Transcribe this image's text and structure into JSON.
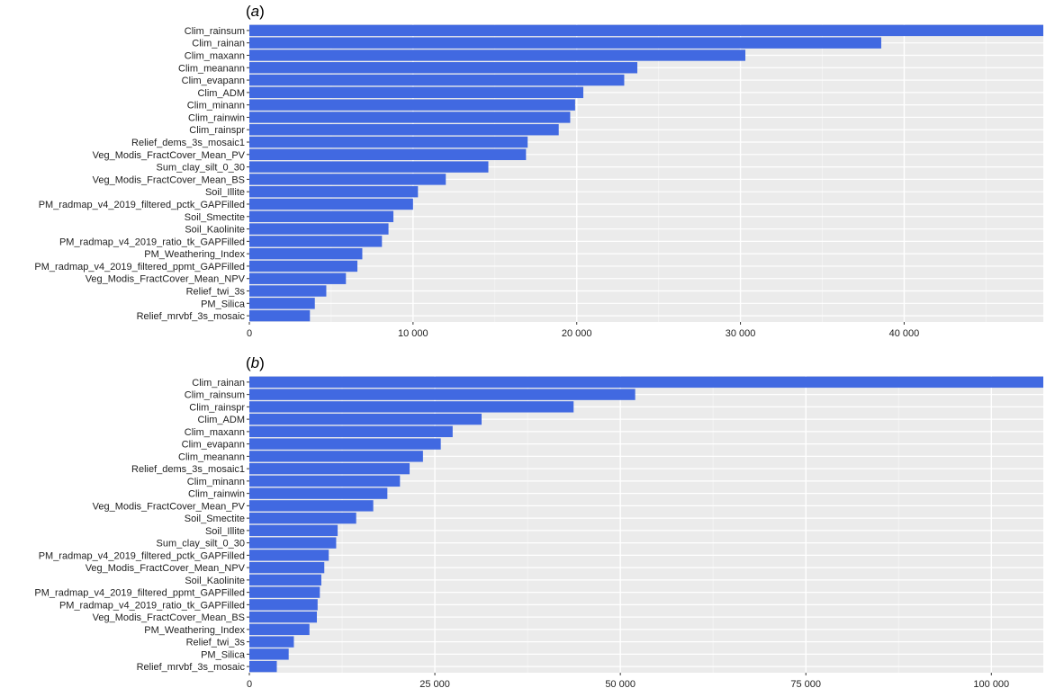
{
  "colors": {
    "bar": "#4169E1",
    "panel": "#EBEBEB",
    "grid_major": "#FFFFFF",
    "grid_minor": "#F5F5F5",
    "text": "#222222"
  },
  "chart_data": [
    {
      "type": "bar",
      "orientation": "horizontal",
      "panel_label": "a",
      "xlim": [
        0,
        48500
      ],
      "xticks": [
        0,
        10000,
        20000,
        30000,
        40000
      ],
      "xtick_labels": [
        "0",
        "10 000",
        "20 000",
        "30 000",
        "40 000"
      ],
      "grid": true,
      "categories": [
        "Clim_rainsum",
        "Clim_rainan",
        "Clim_maxann",
        "Clim_meanann",
        "Clim_evapann",
        "Clim_ADM",
        "Clim_minann",
        "Clim_rainwin",
        "Clim_rainspr",
        "Relief_dems_3s_mosaic1",
        "Veg_Modis_FractCover_Mean_PV",
        "Sum_clay_silt_0_30",
        "Veg_Modis_FractCover_Mean_BS",
        "Soil_Illite",
        "PM_radmap_v4_2019_filtered_pctk_GAPFilled",
        "Soil_Smectite",
        "Soil_Kaolinite",
        "PM_radmap_v4_2019_ratio_tk_GAPFilled",
        "PM_Weathering_Index",
        "PM_radmap_v4_2019_filtered_ppmt_GAPFilled",
        "Veg_Modis_FractCover_Mean_NPV",
        "Relief_twi_3s",
        "PM_Silica",
        "Relief_mrvbf_3s_mosaic"
      ],
      "values": [
        48500,
        38600,
        30300,
        23700,
        22900,
        20400,
        19900,
        19600,
        18900,
        17000,
        16900,
        14600,
        12000,
        10300,
        10000,
        8800,
        8500,
        8100,
        6900,
        6600,
        5900,
        4700,
        4000,
        3700
      ]
    },
    {
      "type": "bar",
      "orientation": "horizontal",
      "panel_label": "b",
      "xlim": [
        0,
        107000
      ],
      "xticks": [
        0,
        25000,
        50000,
        75000,
        100000
      ],
      "xtick_labels": [
        "0",
        "25 000",
        "50 000",
        "75 000",
        "100 000"
      ],
      "grid": true,
      "categories": [
        "Clim_rainan",
        "Clim_rainsum",
        "Clim_rainspr",
        "Clim_ADM",
        "Clim_maxann",
        "Clim_evapann",
        "Clim_meanann",
        "Relief_dems_3s_mosaic1",
        "Clim_minann",
        "Clim_rainwin",
        "Veg_Modis_FractCover_Mean_PV",
        "Soil_Smectite",
        "Soil_Illite",
        "Sum_clay_silt_0_30",
        "PM_radmap_v4_2019_filtered_pctk_GAPFilled",
        "Veg_Modis_FractCover_Mean_NPV",
        "Soil_Kaolinite",
        "PM_radmap_v4_2019_filtered_ppmt_GAPFilled",
        "PM_radmap_v4_2019_ratio_tk_GAPFilled",
        "Veg_Modis_FractCover_Mean_BS",
        "PM_Weathering_Index",
        "Relief_twi_3s",
        "PM_Silica",
        "Relief_mrvbf_3s_mosaic"
      ],
      "values": [
        107000,
        52000,
        43700,
        31300,
        27400,
        25800,
        23400,
        21600,
        20300,
        18600,
        16700,
        14400,
        11900,
        11700,
        10700,
        10100,
        9700,
        9500,
        9200,
        9100,
        8100,
        6000,
        5300,
        3700
      ]
    }
  ]
}
